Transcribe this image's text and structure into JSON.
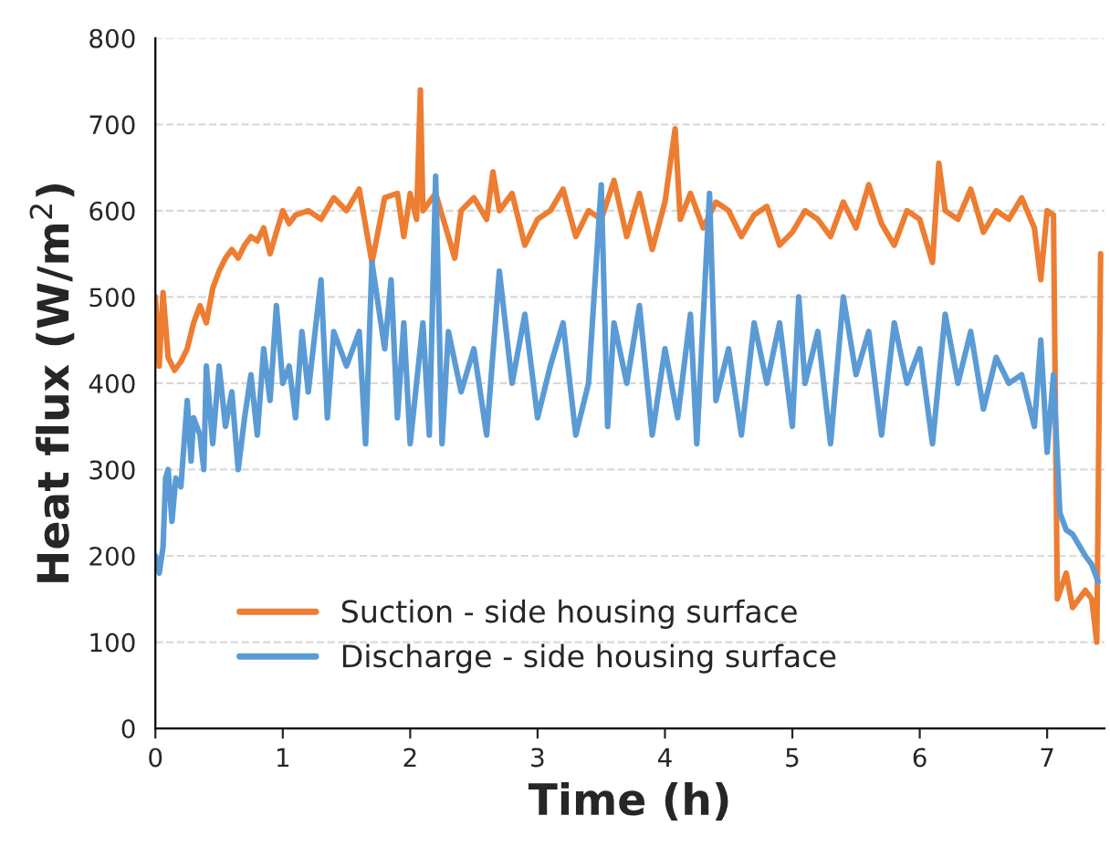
{
  "chart_data": {
    "type": "line",
    "xlabel": "Time (h)",
    "ylabel": "Heat flux (W/m$^{2}$)",
    "xlim": [
      0,
      7.45
    ],
    "xticks": [
      0,
      1,
      2,
      3,
      4,
      5,
      6,
      7
    ],
    "ylim": [
      0,
      800
    ],
    "yticks": [
      0,
      100,
      200,
      300,
      400,
      500,
      600,
      700,
      800
    ],
    "grid": "y",
    "legend": "bottom left",
    "series": [
      {
        "name": "Suction - side housing surface",
        "color": "#ed7d31",
        "x": [
          0,
          0.03,
          0.06,
          0.1,
          0.15,
          0.2,
          0.25,
          0.3,
          0.35,
          0.4,
          0.45,
          0.5,
          0.55,
          0.6,
          0.65,
          0.7,
          0.75,
          0.8,
          0.85,
          0.9,
          0.95,
          1.0,
          1.05,
          1.1,
          1.2,
          1.3,
          1.4,
          1.5,
          1.6,
          1.7,
          1.8,
          1.9,
          1.95,
          2.0,
          2.05,
          2.08,
          2.1,
          2.2,
          2.3,
          2.35,
          2.4,
          2.5,
          2.6,
          2.65,
          2.7,
          2.8,
          2.9,
          3.0,
          3.1,
          3.2,
          3.3,
          3.4,
          3.5,
          3.6,
          3.7,
          3.8,
          3.9,
          4.0,
          4.08,
          4.12,
          4.2,
          4.3,
          4.4,
          4.5,
          4.6,
          4.7,
          4.8,
          4.9,
          5.0,
          5.1,
          5.2,
          5.3,
          5.4,
          5.5,
          5.6,
          5.7,
          5.8,
          5.9,
          6.0,
          6.1,
          6.15,
          6.2,
          6.3,
          6.4,
          6.5,
          6.6,
          6.7,
          6.8,
          6.9,
          6.95,
          7.0,
          7.05,
          7.08,
          7.15,
          7.2,
          7.3,
          7.35,
          7.39,
          7.42
        ],
        "values": [
          500,
          420,
          505,
          430,
          415,
          425,
          440,
          470,
          490,
          470,
          510,
          530,
          545,
          555,
          545,
          560,
          570,
          565,
          580,
          550,
          575,
          600,
          585,
          595,
          600,
          590,
          615,
          600,
          625,
          540,
          615,
          620,
          570,
          620,
          590,
          740,
          600,
          620,
          570,
          545,
          600,
          615,
          590,
          645,
          600,
          620,
          560,
          590,
          600,
          625,
          570,
          600,
          590,
          635,
          570,
          620,
          555,
          610,
          695,
          590,
          620,
          580,
          610,
          600,
          570,
          595,
          605,
          560,
          575,
          600,
          590,
          570,
          610,
          580,
          630,
          585,
          560,
          600,
          590,
          540,
          655,
          600,
          590,
          625,
          575,
          600,
          590,
          615,
          580,
          520,
          600,
          595,
          150,
          180,
          140,
          160,
          150,
          100,
          550
        ]
      },
      {
        "name": "Discharge - side housing surface",
        "color": "#5b9bd5",
        "x": [
          0,
          0.03,
          0.06,
          0.08,
          0.1,
          0.13,
          0.16,
          0.2,
          0.23,
          0.25,
          0.28,
          0.3,
          0.35,
          0.38,
          0.4,
          0.45,
          0.5,
          0.55,
          0.6,
          0.65,
          0.7,
          0.75,
          0.8,
          0.85,
          0.9,
          0.95,
          1.0,
          1.05,
          1.1,
          1.15,
          1.2,
          1.3,
          1.35,
          1.4,
          1.5,
          1.6,
          1.65,
          1.7,
          1.8,
          1.85,
          1.9,
          1.95,
          2.0,
          2.1,
          2.15,
          2.2,
          2.25,
          2.3,
          2.4,
          2.5,
          2.6,
          2.7,
          2.8,
          2.9,
          3.0,
          3.1,
          3.2,
          3.3,
          3.4,
          3.5,
          3.55,
          3.6,
          3.7,
          3.8,
          3.9,
          4.0,
          4.1,
          4.2,
          4.25,
          4.35,
          4.4,
          4.5,
          4.6,
          4.7,
          4.8,
          4.9,
          5.0,
          5.05,
          5.1,
          5.2,
          5.3,
          5.4,
          5.5,
          5.6,
          5.7,
          5.8,
          5.9,
          6.0,
          6.1,
          6.2,
          6.3,
          6.4,
          6.5,
          6.6,
          6.7,
          6.8,
          6.9,
          6.95,
          7.0,
          7.05,
          7.1,
          7.15,
          7.2,
          7.3,
          7.35,
          7.4
        ],
        "values": [
          200,
          180,
          210,
          290,
          300,
          240,
          290,
          280,
          340,
          380,
          310,
          360,
          340,
          300,
          420,
          330,
          420,
          350,
          390,
          300,
          360,
          410,
          340,
          440,
          380,
          490,
          400,
          420,
          360,
          460,
          390,
          520,
          360,
          460,
          420,
          460,
          330,
          540,
          440,
          520,
          360,
          470,
          330,
          470,
          340,
          640,
          330,
          460,
          390,
          440,
          340,
          530,
          400,
          480,
          360,
          420,
          470,
          340,
          400,
          630,
          350,
          470,
          400,
          490,
          340,
          440,
          360,
          480,
          330,
          620,
          380,
          440,
          340,
          470,
          400,
          470,
          350,
          500,
          400,
          460,
          330,
          500,
          410,
          460,
          340,
          470,
          400,
          440,
          330,
          480,
          400,
          460,
          370,
          430,
          400,
          410,
          350,
          450,
          320,
          410,
          250,
          230,
          225,
          200,
          190,
          170
        ]
      }
    ]
  }
}
